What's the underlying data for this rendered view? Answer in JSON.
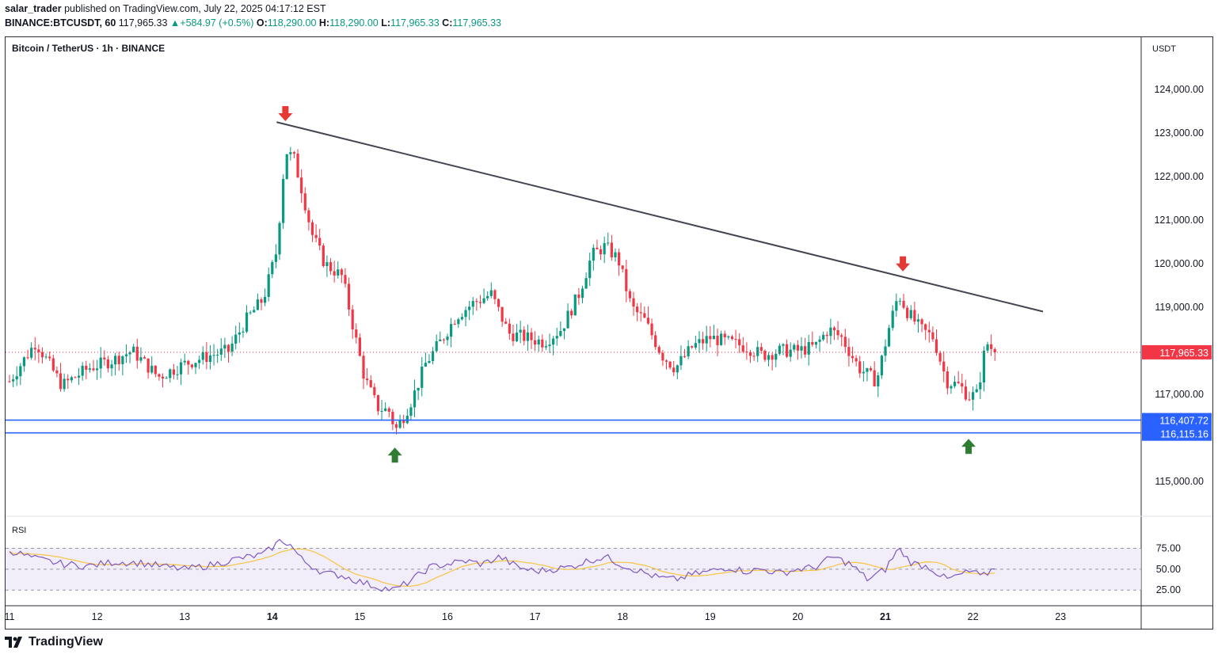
{
  "header": {
    "author": "salar_trader",
    "published_text": "published on TradingView.com, July 22, 2025 04:17:12 EST",
    "symbol": "BINANCE:BTCUSDT, 60",
    "last": "117,965.33",
    "change": "+584.97 (+0.5%)",
    "o_label": "O:",
    "o": "118,290.00",
    "h_label": "H:",
    "h": "118,290.00",
    "l_label": "L:",
    "l": "117,965.33",
    "c_label": "C:",
    "c": "117,965.33"
  },
  "footer": {
    "brand": "TradingView"
  },
  "colors": {
    "up": "#089981",
    "down": "#f23645",
    "support": "#2962ff",
    "rsi_line": "#7e57c2",
    "rsi_ma": "#f5c542",
    "arrow_down": "#e53935",
    "arrow_up": "#2e7d32"
  },
  "chart_data": {
    "type": "candlestick",
    "title": "Bitcoin / TetherUS · 1h · BINANCE",
    "currency": "USDT",
    "y_ticks": [
      "124,000.00",
      "123,000.00",
      "122,000.00",
      "121,000.00",
      "120,000.00",
      "119,000.00",
      "117,000.00",
      "115,000.00"
    ],
    "ylim": [
      114200,
      125200
    ],
    "x_ticks": [
      "11",
      "12",
      "13",
      "14",
      "15",
      "16",
      "17",
      "18",
      "19",
      "20",
      "21",
      "22",
      "23"
    ],
    "x_bold": [
      "14",
      "21"
    ],
    "last_price": {
      "value": 117965.33,
      "label": "117,965.33"
    },
    "support_lines": [
      {
        "value": 116407.72,
        "label": "116,407.72"
      },
      {
        "value": 116115.16,
        "label": "116,115.16"
      }
    ],
    "trendline": {
      "from": {
        "day": 14.05,
        "price": 123250
      },
      "to": {
        "day": 22.8,
        "price": 118900
      }
    },
    "arrows": [
      {
        "dir": "down",
        "day": 14.15,
        "price": 123400
      },
      {
        "dir": "down",
        "day": 21.2,
        "price": 119950
      },
      {
        "dir": "up",
        "day": 15.4,
        "price": 115650
      },
      {
        "dir": "up",
        "day": 21.95,
        "price": 115850
      }
    ],
    "price_path": [
      [
        11.0,
        117300
      ],
      [
        11.3,
        118200
      ],
      [
        11.6,
        117200
      ],
      [
        11.9,
        117600
      ],
      [
        12.2,
        117800
      ],
      [
        12.4,
        118000
      ],
      [
        12.7,
        117400
      ],
      [
        13.0,
        117700
      ],
      [
        13.3,
        117900
      ],
      [
        13.5,
        118000
      ],
      [
        13.7,
        118700
      ],
      [
        13.9,
        119200
      ],
      [
        14.05,
        120300
      ],
      [
        14.15,
        122600
      ],
      [
        14.25,
        122400
      ],
      [
        14.35,
        121600
      ],
      [
        14.45,
        120700
      ],
      [
        14.6,
        120000
      ],
      [
        14.8,
        119700
      ],
      [
        14.95,
        118300
      ],
      [
        15.05,
        117400
      ],
      [
        15.2,
        116700
      ],
      [
        15.35,
        116600
      ],
      [
        15.4,
        116150
      ],
      [
        15.5,
        116500
      ],
      [
        15.6,
        116900
      ],
      [
        15.75,
        117700
      ],
      [
        15.95,
        118300
      ],
      [
        16.1,
        118800
      ],
      [
        16.3,
        119100
      ],
      [
        16.5,
        119300
      ],
      [
        16.7,
        118400
      ],
      [
        16.9,
        118300
      ],
      [
        17.1,
        118200
      ],
      [
        17.3,
        118500
      ],
      [
        17.5,
        119300
      ],
      [
        17.65,
        120200
      ],
      [
        17.8,
        120400
      ],
      [
        17.95,
        120100
      ],
      [
        18.1,
        119000
      ],
      [
        18.25,
        118700
      ],
      [
        18.45,
        117900
      ],
      [
        18.6,
        117600
      ],
      [
        18.8,
        118100
      ],
      [
        19.0,
        118300
      ],
      [
        19.2,
        118200
      ],
      [
        19.4,
        118100
      ],
      [
        19.6,
        117900
      ],
      [
        19.8,
        118000
      ],
      [
        20.0,
        118000
      ],
      [
        20.2,
        118100
      ],
      [
        20.35,
        118500
      ],
      [
        20.5,
        118300
      ],
      [
        20.7,
        117600
      ],
      [
        20.9,
        117300
      ],
      [
        21.05,
        118600
      ],
      [
        21.15,
        119300
      ],
      [
        21.25,
        118900
      ],
      [
        21.4,
        118500
      ],
      [
        21.55,
        118300
      ],
      [
        21.7,
        117300
      ],
      [
        21.85,
        117200
      ],
      [
        21.95,
        116950
      ],
      [
        22.05,
        117000
      ],
      [
        22.15,
        118200
      ],
      [
        22.25,
        117965
      ]
    ],
    "rsi": {
      "label": "RSI",
      "levels": [
        "75.00",
        "50.00",
        "25.00"
      ],
      "level_values": [
        70,
        50,
        30
      ],
      "ylim": [
        15,
        100
      ],
      "values": [
        [
          11.0,
          68
        ],
        [
          11.3,
          60
        ],
        [
          11.6,
          55
        ],
        [
          11.9,
          53
        ],
        [
          12.2,
          57
        ],
        [
          12.5,
          56
        ],
        [
          12.8,
          52
        ],
        [
          13.0,
          50
        ],
        [
          13.3,
          54
        ],
        [
          13.6,
          60
        ],
        [
          13.9,
          64
        ],
        [
          14.1,
          78
        ],
        [
          14.2,
          74
        ],
        [
          14.35,
          58
        ],
        [
          14.6,
          46
        ],
        [
          14.8,
          44
        ],
        [
          15.0,
          38
        ],
        [
          15.2,
          33
        ],
        [
          15.4,
          30
        ],
        [
          15.6,
          40
        ],
        [
          15.8,
          52
        ],
        [
          16.0,
          55
        ],
        [
          16.2,
          58
        ],
        [
          16.4,
          55
        ],
        [
          16.6,
          62
        ],
        [
          16.8,
          52
        ],
        [
          17.0,
          48
        ],
        [
          17.2,
          50
        ],
        [
          17.4,
          52
        ],
        [
          17.6,
          58
        ],
        [
          17.8,
          62
        ],
        [
          18.0,
          54
        ],
        [
          18.2,
          48
        ],
        [
          18.4,
          42
        ],
        [
          18.6,
          40
        ],
        [
          18.8,
          45
        ],
        [
          19.0,
          48
        ],
        [
          19.2,
          52
        ],
        [
          19.4,
          48
        ],
        [
          19.6,
          50
        ],
        [
          19.8,
          46
        ],
        [
          20.0,
          50
        ],
        [
          20.2,
          52
        ],
        [
          20.4,
          62
        ],
        [
          20.6,
          55
        ],
        [
          20.8,
          40
        ],
        [
          21.0,
          50
        ],
        [
          21.15,
          70
        ],
        [
          21.3,
          56
        ],
        [
          21.5,
          52
        ],
        [
          21.7,
          40
        ],
        [
          21.9,
          46
        ],
        [
          22.0,
          48
        ],
        [
          22.1,
          42
        ],
        [
          22.25,
          52
        ]
      ]
    }
  }
}
